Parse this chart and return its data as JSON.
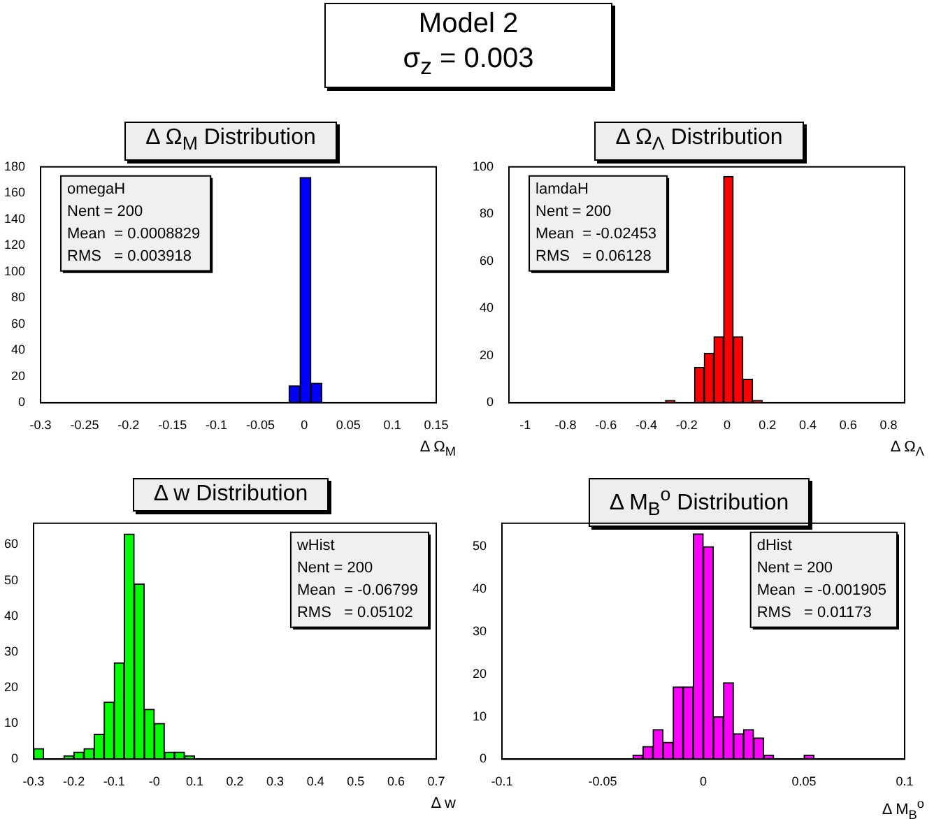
{
  "chart_data": [
    {
      "type": "other",
      "title": "Model 2",
      "subtitle": "σ$_{z}$ =  0.003"
    },
    {
      "type": "histogram",
      "title": "Δ Ω$_{M}$ Distribution",
      "xlabel": "Δ Ω$_{M}$",
      "color": "#0000ff",
      "bins": [
        -0.0175,
        -0.005,
        0.0075,
        0.02
      ],
      "values": [
        13,
        172,
        15
      ],
      "xlim": [
        -0.3,
        0.15
      ],
      "xticks": [
        -0.3,
        -0.25,
        -0.2,
        -0.15,
        -0.1,
        -0.05,
        0,
        0.05,
        0.1,
        0.15
      ],
      "ylim": [
        0,
        180
      ],
      "yticks": [
        0,
        20,
        40,
        60,
        80,
        100,
        120,
        140,
        160,
        180
      ],
      "annotations": [
        "omegaH",
        "Nent = 200",
        "Mean  = 0.0008829",
        "RMS   = 0.003918"
      ],
      "grid": false,
      "legend": false
    },
    {
      "type": "histogram",
      "title": "Δ Ω$_{Λ}$ Distribution",
      "xlabel": "Δ Ω$_{Λ}$",
      "color": "#ff0000",
      "bins": [
        -0.305,
        -0.257,
        -0.209,
        -0.161,
        -0.113,
        -0.065,
        -0.017,
        0.031,
        0.079,
        0.127,
        0.175
      ],
      "values": [
        1,
        0,
        0,
        15,
        21,
        28,
        96,
        28,
        10,
        1
      ],
      "xlim": [
        -1.08,
        0.88
      ],
      "xticks": [
        -1,
        -0.8,
        -0.6,
        -0.4,
        -0.2,
        0,
        0.2,
        0.4,
        0.6,
        0.8
      ],
      "ylim": [
        0,
        100
      ],
      "yticks": [
        0,
        20,
        40,
        60,
        80,
        100
      ],
      "annotations": [
        "lamdaH",
        "Nent = 200",
        "Mean  = -0.02453",
        "RMS   = 0.06128"
      ],
      "grid": false,
      "legend": false
    },
    {
      "type": "histogram",
      "title": "Δ w Distribution",
      "xlabel": "Δ w",
      "color": "#00ff00",
      "bins": [
        -0.3,
        -0.275,
        -0.25,
        -0.225,
        -0.2,
        -0.175,
        -0.15,
        -0.125,
        -0.1,
        -0.075,
        -0.05,
        -0.025,
        0,
        0.025,
        0.05,
        0.075,
        0.1
      ],
      "values": [
        3,
        0,
        0,
        1,
        2,
        3,
        7,
        16,
        27,
        63,
        49,
        14,
        10,
        2,
        2,
        1
      ],
      "xlim": [
        -0.3,
        0.7
      ],
      "xticks": [
        -0.3,
        -0.2,
        -0.1,
        {
          "value": 0,
          "label": "-0"
        },
        0.1,
        0.2,
        0.3,
        0.4,
        0.5,
        0.6,
        0.7
      ],
      "ylim": [
        0,
        66
      ],
      "yticks": [
        0,
        10,
        20,
        30,
        40,
        50,
        60
      ],
      "annotations": [
        "wHist",
        "Nent = 200",
        "Mean  = -0.06799",
        "RMS   = 0.05102"
      ],
      "grid": false,
      "legend": false
    },
    {
      "type": "histogram",
      "title": "Δ M$_{B}$$^{o}$ Distribution",
      "xlabel": "Δ M$_{B}$$^{o}$",
      "color": "#ff00ff",
      "bins": [
        -0.035,
        -0.03,
        -0.025,
        -0.02,
        -0.015,
        -0.01,
        -0.005,
        0,
        0.005,
        0.01,
        0.015,
        0.02,
        0.025,
        0.03,
        0.035,
        0.04,
        0.045,
        0.05,
        0.055
      ],
      "values": [
        1,
        3,
        7,
        4,
        17,
        17,
        53,
        50,
        10,
        18,
        6,
        7,
        5,
        1,
        0,
        0,
        0,
        1
      ],
      "xlim": [
        -0.1,
        0.1
      ],
      "xticks": [
        -0.1,
        -0.05,
        0,
        0.05,
        0.1
      ],
      "ylim": [
        0,
        55.5
      ],
      "yticks": [
        0,
        10,
        20,
        30,
        40,
        50
      ],
      "annotations": [
        "dHist",
        "Nent = 200",
        "Mean  = -0.001905",
        "RMS   = 0.01173"
      ],
      "grid": false,
      "legend": false
    }
  ]
}
